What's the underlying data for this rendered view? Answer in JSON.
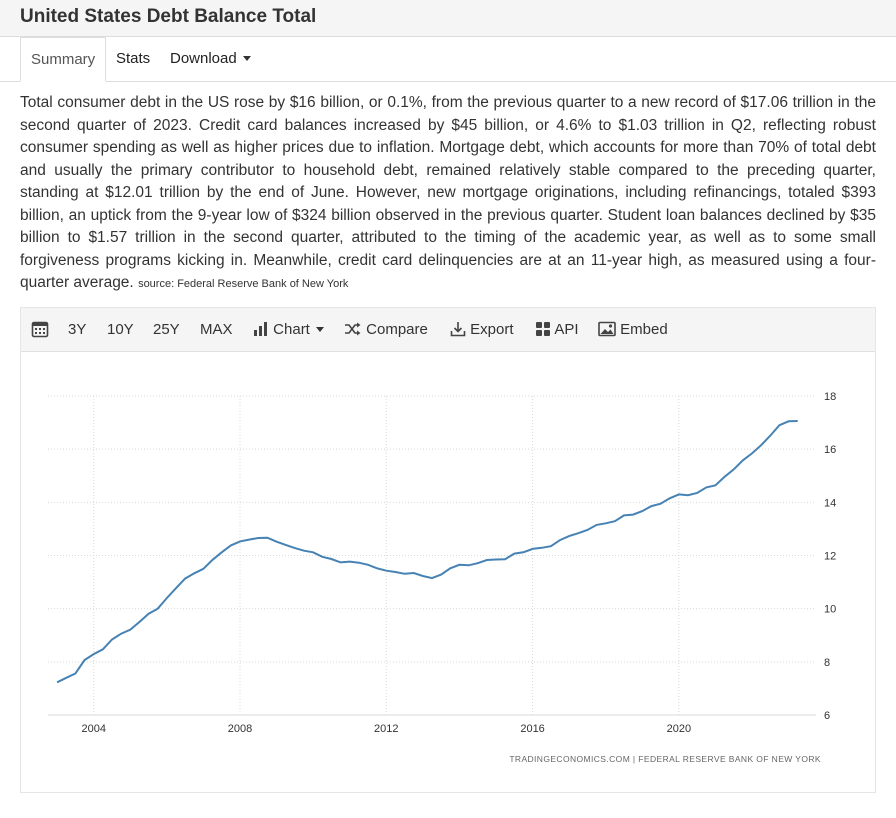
{
  "page": {
    "title": "United States Debt Balance Total"
  },
  "tabs": [
    {
      "label": "Summary",
      "active": true
    },
    {
      "label": "Stats",
      "active": false
    },
    {
      "label": "Download",
      "active": false
    }
  ],
  "description": {
    "text": "Total consumer debt in the US rose by $16 billion, or 0.1%, from the previous quarter to a new record of $17.06 trillion in the second quarter of 2023. Credit card balances increased by $45 billion, or 4.6% to $1.03 trillion in Q2, reflecting robust consumer spending as well as higher prices due to inflation. Mortgage debt, which accounts for more than 70% of total debt and usually the primary contributor to household debt, remained relatively stable compared to the preceding quarter, standing at $12.01 trillion by the end of June. However, new mortgage originations, including refinancings, totaled $393 billion, an uptick from the 9-year low of $324 billion observed in the previous quarter. Student loan balances declined by $35 billion to $1.57 trillion in the second quarter, attributed to the timing of the academic year, as well as to some small forgiveness programs kicking in. Meanwhile, credit card delinquencies are at an 11-year high, as measured using a four-quarter average.",
    "source": "source: Federal Reserve Bank of New York"
  },
  "toolbar": {
    "calendar_icon": "calendar-icon",
    "ranges": [
      "3Y",
      "10Y",
      "25Y",
      "MAX"
    ],
    "chart_label": "Chart",
    "compare_label": "Compare",
    "export_label": "Export",
    "api_label": "API",
    "embed_label": "Embed"
  },
  "colors": {
    "line": "#4682b4",
    "grid": "#d9d9d9"
  },
  "chart_data": {
    "type": "line",
    "title": "",
    "xlabel": "",
    "ylabel": "",
    "xlim": [
      2002.75,
      2023.75
    ],
    "ylim": [
      6,
      18
    ],
    "yticks": [
      6,
      8,
      10,
      12,
      14,
      16,
      18
    ],
    "xticks": [
      2004,
      2008,
      2012,
      2016,
      2020
    ],
    "y_axis_side": "right",
    "grid": true,
    "watermark": "TRADINGECONOMICS.COM  |  FEDERAL RESERVE BANK OF NEW YORK",
    "series": [
      {
        "x": [
          2003.0,
          2003.25,
          2003.5,
          2003.75,
          2004.0,
          2004.25,
          2004.5,
          2004.75,
          2005.0,
          2005.25,
          2005.5,
          2005.75,
          2006.0,
          2006.25,
          2006.5,
          2006.75,
          2007.0,
          2007.25,
          2007.5,
          2007.75,
          2008.0,
          2008.25,
          2008.5,
          2008.75,
          2009.0,
          2009.25,
          2009.5,
          2009.75,
          2010.0,
          2010.25,
          2010.5,
          2010.75,
          2011.0,
          2011.25,
          2011.5,
          2011.75,
          2012.0,
          2012.25,
          2012.5,
          2012.75,
          2013.0,
          2013.25,
          2013.5,
          2013.75,
          2014.0,
          2014.25,
          2014.5,
          2014.75,
          2015.0,
          2015.25,
          2015.5,
          2015.75,
          2016.0,
          2016.25,
          2016.5,
          2016.75,
          2017.0,
          2017.25,
          2017.5,
          2017.75,
          2018.0,
          2018.25,
          2018.5,
          2018.75,
          2019.0,
          2019.25,
          2019.5,
          2019.75,
          2020.0,
          2020.25,
          2020.5,
          2020.75,
          2021.0,
          2021.25,
          2021.5,
          2021.75,
          2022.0,
          2022.25,
          2022.5,
          2022.75,
          2023.0,
          2023.25
        ],
        "values": [
          7.23,
          7.4,
          7.56,
          8.07,
          8.29,
          8.47,
          8.84,
          9.06,
          9.21,
          9.5,
          9.81,
          10.0,
          10.4,
          10.77,
          11.13,
          11.33,
          11.5,
          11.84,
          12.12,
          12.38,
          12.53,
          12.6,
          12.66,
          12.67,
          12.52,
          12.4,
          12.28,
          12.18,
          12.12,
          11.95,
          11.87,
          11.74,
          11.77,
          11.73,
          11.65,
          11.52,
          11.43,
          11.38,
          11.31,
          11.34,
          11.23,
          11.15,
          11.28,
          11.52,
          11.65,
          11.63,
          11.71,
          11.83,
          11.85,
          11.86,
          12.07,
          12.12,
          12.25,
          12.29,
          12.35,
          12.58,
          12.73,
          12.84,
          12.96,
          13.15,
          13.21,
          13.29,
          13.51,
          13.54,
          13.67,
          13.86,
          13.95,
          14.15,
          14.3,
          14.27,
          14.35,
          14.56,
          14.64,
          14.96,
          15.24,
          15.58,
          15.84,
          16.15,
          16.51,
          16.9,
          17.05,
          17.06
        ]
      }
    ]
  }
}
